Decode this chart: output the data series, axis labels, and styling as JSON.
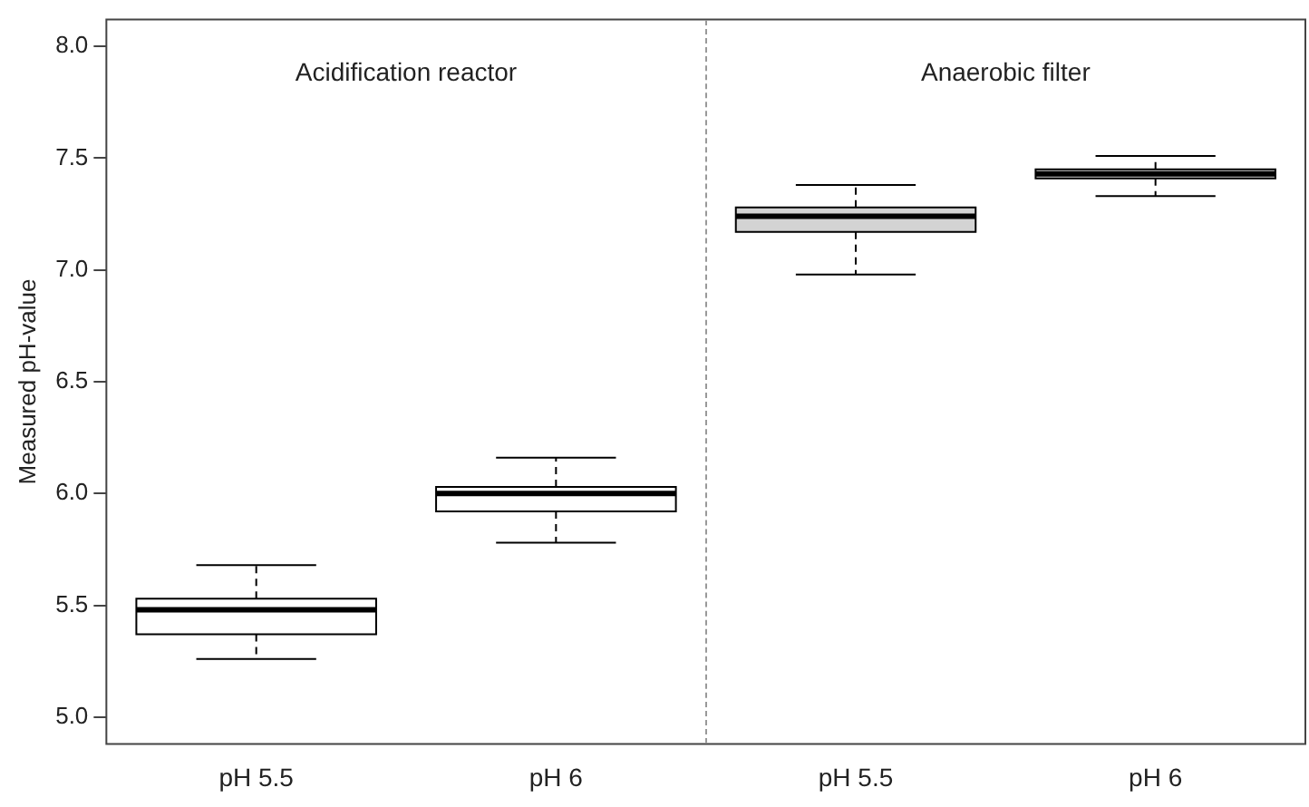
{
  "chart_data": {
    "type": "box",
    "ylabel": "Measured pH-value",
    "categories": [
      "pH 5.5",
      "pH 6",
      "pH 5.5",
      "pH 6"
    ],
    "boxes": [
      {
        "low": 5.26,
        "q1": 5.37,
        "median": 5.48,
        "q3": 5.53,
        "high": 5.68
      },
      {
        "low": 5.78,
        "q1": 5.92,
        "median": 6.0,
        "q3": 6.03,
        "high": 6.16
      },
      {
        "low": 6.98,
        "q1": 7.17,
        "median": 7.24,
        "q3": 7.28,
        "high": 7.38
      },
      {
        "low": 7.33,
        "q1": 7.41,
        "median": 7.43,
        "q3": 7.45,
        "high": 7.51
      }
    ],
    "colors": [
      "#ffffff",
      "#ffffff",
      "#d3d3d3",
      "#d3d3d3"
    ],
    "ylim": [
      4.88,
      8.12
    ],
    "yticks": [
      {
        "value": 5,
        "label": "5.0"
      },
      {
        "value": 5.5,
        "label": "5.5"
      },
      {
        "value": 6,
        "label": "6.0"
      },
      {
        "value": 6.5,
        "label": "6.5"
      },
      {
        "value": 7,
        "label": "7.0"
      },
      {
        "value": 7.5,
        "label": "7.5"
      },
      {
        "value": 8,
        "label": "8.0"
      }
    ],
    "annotations": [
      "Acidification reactor",
      "Anaerobic filter"
    ],
    "grid": false,
    "legend": false
  }
}
